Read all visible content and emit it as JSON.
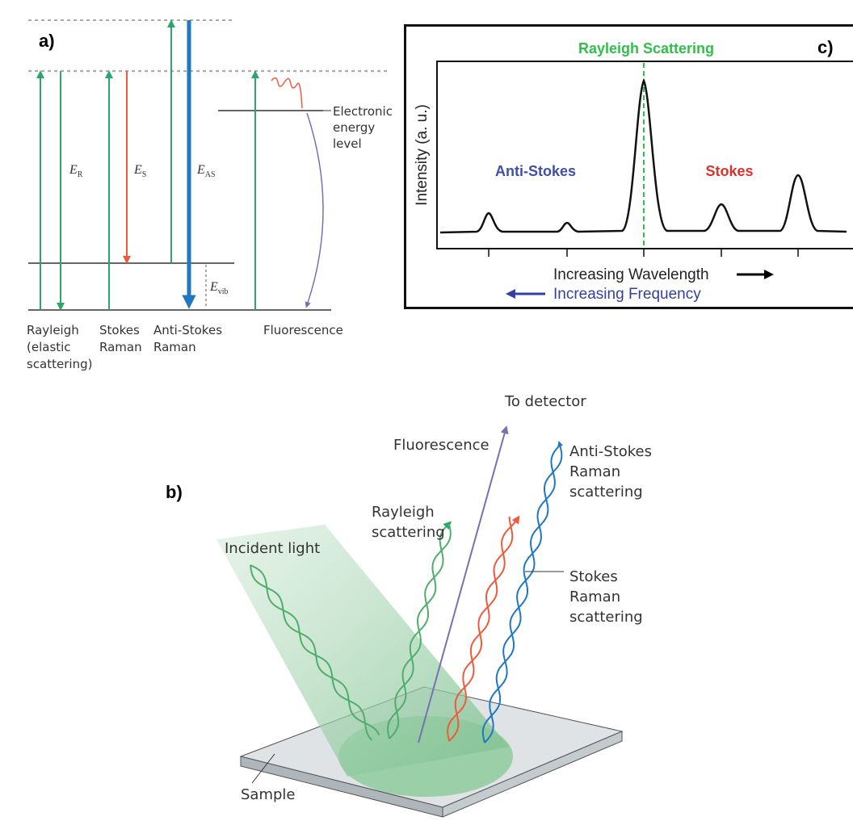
{
  "panel_a": {
    "label": "a)",
    "energies": [
      {
        "symbol": "E",
        "sub": "R"
      },
      {
        "symbol": "E",
        "sub": "S"
      },
      {
        "symbol": "E",
        "sub": "AS"
      },
      {
        "symbol": "E",
        "sub": "vib"
      }
    ],
    "electronic_level": [
      "Electronic",
      "energy",
      "level"
    ],
    "processes": [
      [
        "Rayleigh",
        "(elastic",
        "scattering)"
      ],
      [
        "Stokes",
        "Raman"
      ],
      [
        "Anti-Stokes",
        "Raman"
      ],
      [
        "Fluorescence"
      ]
    ]
  },
  "panel_c": {
    "label": "c)",
    "title": "Rayleigh Scattering",
    "y_axis": "Intensity (a. u.)",
    "anti_stokes": "Anti-Stokes",
    "stokes": "Stokes",
    "x_axis": "Increasing Wavelength",
    "x_axis_reverse": "Increasing Frequency"
  },
  "panel_b": {
    "label": "b)",
    "to_detector": "To detector",
    "fluorescence": "Fluorescence",
    "anti_stokes": [
      "Anti-Stokes",
      "Raman",
      "scattering"
    ],
    "rayleigh": [
      "Rayleigh",
      "scattering"
    ],
    "incident": "Incident light",
    "stokes": [
      "Stokes",
      "Raman",
      "scattering"
    ],
    "sample": "Sample"
  }
}
